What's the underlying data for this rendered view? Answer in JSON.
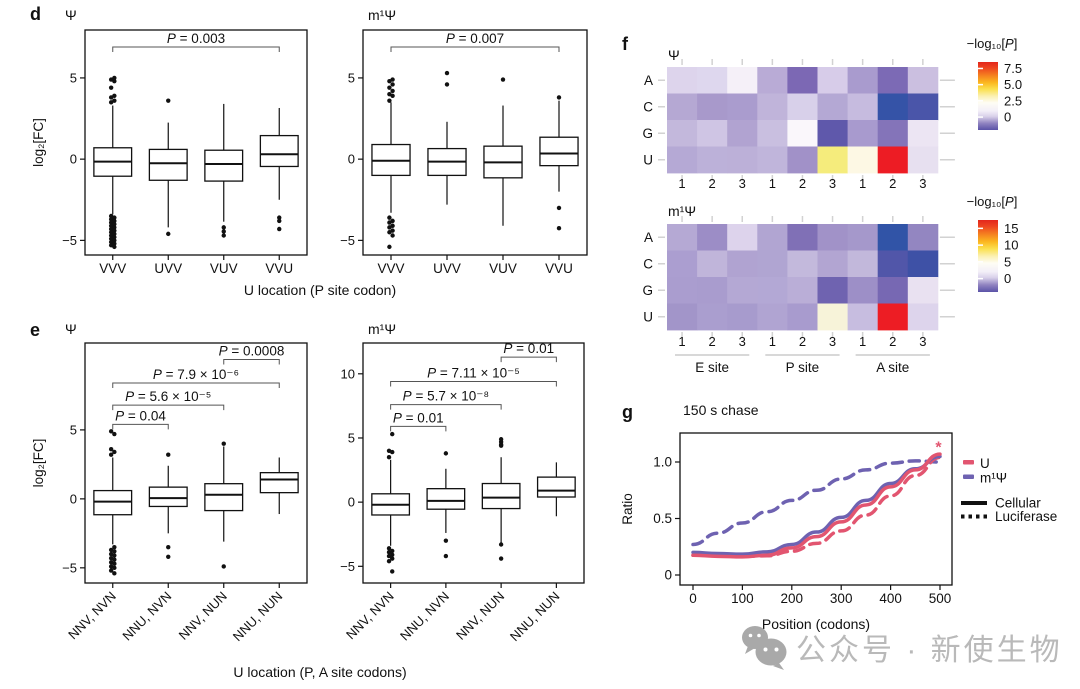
{
  "figure": {
    "panels": {
      "d": {
        "label": "d",
        "shared_xlabel": "U location (P site codon)"
      },
      "e": {
        "label": "e",
        "shared_xlabel": "U location (P, A site codons)"
      },
      "f": {
        "label": "f"
      },
      "g": {
        "label": "g"
      }
    },
    "watermark": {
      "text": "公众号 · 新使生物",
      "color": "#b9b9b9",
      "icon": "wechat-icon"
    }
  },
  "chart_data": [
    {
      "id": "d_psi",
      "panel": "d",
      "type": "box",
      "title": "Ψ",
      "ylabel": "log₂[FC]",
      "ylim": [
        -5.9,
        7.95
      ],
      "yticks": [
        -5,
        0,
        5
      ],
      "categories": [
        "VVV",
        "UVV",
        "VUV",
        "VVU"
      ],
      "boxes": [
        {
          "median": -0.15,
          "q1": -1.05,
          "q3": 0.7,
          "whisker_low": -3.4,
          "whisker_high": 3.3,
          "outliers": [
            3.5,
            3.6,
            3.8,
            3.9,
            4.4,
            4.8,
            4.9,
            5.0,
            -3.5,
            -3.6,
            -3.7,
            -3.8,
            -3.9,
            -4.0,
            -4.1,
            -4.2,
            -4.3,
            -4.4,
            -4.5,
            -4.6,
            -4.7,
            -4.8,
            -4.9,
            -5.0,
            -5.1,
            -5.2,
            -5.3,
            -5.4
          ]
        },
        {
          "median": -0.25,
          "q1": -1.3,
          "q3": 0.6,
          "whisker_low": -4.2,
          "whisker_high": 2.25,
          "outliers": [
            3.6,
            -4.6
          ]
        },
        {
          "median": -0.3,
          "q1": -1.35,
          "q3": 0.55,
          "whisker_low": -3.85,
          "whisker_high": 3.4,
          "outliers": [
            -4.2,
            -4.45,
            -4.7
          ]
        },
        {
          "median": 0.3,
          "q1": -0.45,
          "q3": 1.45,
          "whisker_low": -2.5,
          "whisker_high": 3.15,
          "outliers": [
            -3.6,
            -3.8,
            -4.3
          ]
        }
      ],
      "brackets": [
        {
          "from": 0,
          "to": 3,
          "y": 6.9,
          "label": "P = 0.003"
        }
      ]
    },
    {
      "id": "d_m1psi",
      "panel": "d",
      "type": "box",
      "title": "m¹Ψ",
      "ylabel": "",
      "ylim": [
        -5.9,
        7.95
      ],
      "yticks": [
        -5,
        0,
        5
      ],
      "categories": [
        "VVV",
        "UVV",
        "VUV",
        "VVU"
      ],
      "boxes": [
        {
          "median": -0.1,
          "q1": -1.0,
          "q3": 0.9,
          "whisker_low": -3.3,
          "whisker_high": 3.5,
          "outliers": [
            3.6,
            3.9,
            4.0,
            4.2,
            4.4,
            4.6,
            4.8,
            4.9,
            -3.6,
            -3.8,
            -3.9,
            -4.1,
            -4.2,
            -4.4,
            -4.5,
            -4.7,
            -5.4
          ]
        },
        {
          "median": -0.15,
          "q1": -1.0,
          "q3": 0.65,
          "whisker_low": -2.8,
          "whisker_high": 2.3,
          "outliers": [
            5.3,
            4.6
          ]
        },
        {
          "median": -0.2,
          "q1": -1.15,
          "q3": 0.8,
          "whisker_low": -4.1,
          "whisker_high": 3.3,
          "outliers": [
            4.9
          ]
        },
        {
          "median": 0.35,
          "q1": -0.4,
          "q3": 1.35,
          "whisker_low": -2.0,
          "whisker_high": 3.6,
          "outliers": [
            3.8,
            -3.0,
            -4.25
          ]
        }
      ],
      "brackets": [
        {
          "from": 0,
          "to": 3,
          "y": 6.9,
          "label": "P = 0.007"
        }
      ]
    },
    {
      "id": "e_psi",
      "panel": "e",
      "type": "box",
      "title": "Ψ",
      "ylabel": "log₂[FC]",
      "ylim": [
        -6.1,
        11.3
      ],
      "yticks": [
        -5,
        0,
        5
      ],
      "categories": [
        "NNV, NVN",
        "NNU, NVN",
        "NNV, NUN",
        "NNU, NUN"
      ],
      "boxes": [
        {
          "median": -0.2,
          "q1": -1.15,
          "q3": 0.6,
          "whisker_low": -3.3,
          "whisker_high": 3.0,
          "outliers": [
            3.2,
            3.4,
            3.6,
            4.7,
            4.9,
            -3.5,
            -3.7,
            -3.8,
            -4.0,
            -4.1,
            -4.3,
            -4.4,
            -4.6,
            -4.7,
            -4.9,
            -5.0,
            -5.2,
            -5.4
          ]
        },
        {
          "median": 0.05,
          "q1": -0.55,
          "q3": 0.85,
          "whisker_low": -2.5,
          "whisker_high": 2.4,
          "outliers": [
            3.2,
            -3.5,
            -4.2
          ]
        },
        {
          "median": 0.3,
          "q1": -0.85,
          "q3": 1.1,
          "whisker_low": -3.1,
          "whisker_high": 3.8,
          "outliers": [
            4.0,
            -4.9
          ]
        },
        {
          "median": 1.4,
          "q1": 0.45,
          "q3": 1.9,
          "whisker_low": -1.1,
          "whisker_high": 3.0,
          "outliers": []
        }
      ],
      "brackets": [
        {
          "from": 0,
          "to": 1,
          "y": 5.4,
          "label": "P = 0.04"
        },
        {
          "from": 0,
          "to": 2,
          "y": 6.8,
          "label": "P = 5.6 × 10⁻⁵"
        },
        {
          "from": 0,
          "to": 3,
          "y": 8.4,
          "label": "P = 7.9 × 10⁻⁶"
        },
        {
          "from": 2,
          "to": 3,
          "y": 10.1,
          "label": "P = 0.0008"
        }
      ]
    },
    {
      "id": "e_m1psi",
      "panel": "e",
      "type": "box",
      "title": "m¹Ψ",
      "ylabel": "",
      "ylim": [
        -6.3,
        12.4
      ],
      "yticks": [
        -5,
        0,
        5,
        10
      ],
      "categories": [
        "NNV, NVN",
        "NNU, NVN",
        "NNV, NUN",
        "NNU, NUN"
      ],
      "boxes": [
        {
          "median": -0.2,
          "q1": -1.0,
          "q3": 0.65,
          "whisker_low": -3.4,
          "whisker_high": 3.3,
          "outliers": [
            3.5,
            3.9,
            4.0,
            5.3,
            -3.6,
            -3.8,
            -3.9,
            -4.1,
            -4.2,
            -4.4,
            -4.6,
            -5.4
          ]
        },
        {
          "median": 0.1,
          "q1": -0.55,
          "q3": 1.05,
          "whisker_low": -2.4,
          "whisker_high": 2.6,
          "outliers": [
            3.8,
            -3.0,
            -4.2
          ]
        },
        {
          "median": 0.35,
          "q1": -0.5,
          "q3": 1.45,
          "whisker_low": -3.2,
          "whisker_high": 3.5,
          "outliers": [
            4.4,
            4.5,
            4.7,
            4.9,
            -3.3,
            -4.4
          ]
        },
        {
          "median": 0.9,
          "q1": 0.4,
          "q3": 1.95,
          "whisker_low": -1.1,
          "whisker_high": 3.1,
          "outliers": []
        }
      ],
      "brackets": [
        {
          "from": 0,
          "to": 1,
          "y": 5.9,
          "label": "P = 0.01"
        },
        {
          "from": 0,
          "to": 2,
          "y": 7.6,
          "label": "P = 5.7 × 10⁻⁸"
        },
        {
          "from": 0,
          "to": 3,
          "y": 9.4,
          "label": "P = 7.11 × 10⁻⁵"
        },
        {
          "from": 2,
          "to": 3,
          "y": 11.3,
          "label": "P = 0.01"
        }
      ]
    },
    {
      "id": "f_psi",
      "panel": "f",
      "type": "heatmap",
      "title": "Ψ",
      "rows": [
        "A",
        "C",
        "G",
        "U"
      ],
      "cols": [
        "1",
        "2",
        "3",
        "1",
        "2",
        "3",
        "1",
        "2",
        "3"
      ],
      "groups": null,
      "colors": [
        [
          "#ddd4ec",
          "#ded7ee",
          "#f5f0f8",
          "#b9abd6",
          "#7c68b4",
          "#d7cce9",
          "#a99bce",
          "#7c6ab5",
          "#cbbfe0"
        ],
        [
          "#b5a8d3",
          "#a899cb",
          "#aa9cce",
          "#c0b4da",
          "#d8d0ea",
          "#b4a8d4",
          "#c6bbdf",
          "#3553a7",
          "#4a55a9"
        ],
        [
          "#c3b8dc",
          "#cfc5e4",
          "#b1a3d1",
          "#c9bfe0",
          "#faf7fb",
          "#5f58ab",
          "#a89ace",
          "#8474b9",
          "#ece5f3"
        ],
        [
          "#b5a9d5",
          "#bcb1d9",
          "#bcb0d8",
          "#c0b5db",
          "#a191c8",
          "#f5ec7c",
          "#fdf8e4",
          "#ed1c24",
          "#e7e0f0"
        ]
      ],
      "colorbar": {
        "label": "−log₁₀[P]",
        "ticks": [
          {
            "label": "7.5",
            "pos": 0.095
          },
          {
            "label": "5.0",
            "pos": 0.333
          },
          {
            "label": "2.5",
            "pos": 0.571
          },
          {
            "label": "0",
            "pos": 0.81
          }
        ],
        "stops": [
          [
            0,
            "#e3261c"
          ],
          [
            0.09,
            "#ee4620"
          ],
          [
            0.2,
            "#f58220"
          ],
          [
            0.3,
            "#fbb61f"
          ],
          [
            0.4,
            "#fbe04e"
          ],
          [
            0.5,
            "#fbf0b0"
          ],
          [
            0.6,
            "#fefdf4"
          ],
          [
            0.72,
            "#f3eff8"
          ],
          [
            0.8,
            "#d9d1ea"
          ],
          [
            0.9,
            "#9184c1"
          ],
          [
            1,
            "#5a52a7"
          ]
        ]
      }
    },
    {
      "id": "f_m1psi",
      "panel": "f",
      "type": "heatmap",
      "title": "m¹Ψ",
      "rows": [
        "A",
        "C",
        "G",
        "U"
      ],
      "cols": [
        "1",
        "2",
        "3",
        "1",
        "2",
        "3",
        "1",
        "2",
        "3"
      ],
      "groups": [
        "E site",
        "P site",
        "A site"
      ],
      "colors": [
        [
          "#b5a9d4",
          "#9c8dc6",
          "#ddd3ec",
          "#b1a5d2",
          "#8070b6",
          "#a192c8",
          "#a598cb",
          "#3154a7",
          "#9386c1"
        ],
        [
          "#ab9ed0",
          "#c0b5da",
          "#b0a3d1",
          "#b0a5d2",
          "#c3b9dc",
          "#b2a5d2",
          "#c2b8db",
          "#5156a9",
          "#3e51a6"
        ],
        [
          "#aa9dcf",
          "#a99cce",
          "#b4a8d4",
          "#b3a8d5",
          "#baaed7",
          "#6f63b0",
          "#9d8fc7",
          "#7768b3",
          "#e9e1f1"
        ],
        [
          "#a295c9",
          "#aa9ecf",
          "#a79bcd",
          "#b0a4d2",
          "#a89bce",
          "#f7f3d9",
          "#c7bde0",
          "#ed1d24",
          "#ddd4ec"
        ]
      ],
      "colorbar": {
        "label": "−log₁₀[P]",
        "ticks": [
          {
            "label": "15",
            "pos": 0.116
          },
          {
            "label": "10",
            "pos": 0.349
          },
          {
            "label": "5",
            "pos": 0.581
          },
          {
            "label": "0",
            "pos": 0.814
          }
        ],
        "stops": [
          [
            0,
            "#e3261c"
          ],
          [
            0.09,
            "#ee4620"
          ],
          [
            0.2,
            "#f58220"
          ],
          [
            0.3,
            "#fbb61f"
          ],
          [
            0.4,
            "#fbe04e"
          ],
          [
            0.5,
            "#fbf0b0"
          ],
          [
            0.6,
            "#fefdf4"
          ],
          [
            0.72,
            "#f3eff8"
          ],
          [
            0.8,
            "#d9d1ea"
          ],
          [
            0.9,
            "#9184c1"
          ],
          [
            1,
            "#5a52a7"
          ]
        ]
      }
    },
    {
      "id": "g_chase",
      "panel": "g",
      "type": "line",
      "title": "150 s chase",
      "xlabel": "Position (codons)",
      "ylabel": "Ratio",
      "xticks": [
        [
          "0",
          0
        ],
        [
          "100",
          100
        ],
        [
          "200",
          200
        ],
        [
          "300",
          300
        ],
        [
          "400",
          400
        ],
        [
          "500",
          500
        ]
      ],
      "yticks": [
        [
          "0",
          0
        ],
        [
          "0.5",
          0.5
        ],
        [
          "1.0",
          1
        ]
      ],
      "x": [
        0,
        50,
        100,
        150,
        200,
        250,
        300,
        350,
        400,
        450,
        500
      ],
      "series": [
        {
          "name": "m¹Ψ Luciferase",
          "color": "#6e62b1",
          "dash": "10 7",
          "values": [
            0.27,
            0.37,
            0.46,
            0.56,
            0.66,
            0.75,
            0.85,
            0.93,
            0.99,
            1.01,
            1.0
          ]
        },
        {
          "name": "U Luciferase",
          "color": "#e25570",
          "dash": "10 7",
          "values": [
            0.175,
            0.17,
            0.165,
            0.17,
            0.21,
            0.28,
            0.39,
            0.53,
            0.7,
            0.88,
            1.04
          ]
        },
        {
          "name": "m¹Ψ Cellular",
          "color": "#6e62b1",
          "dash": null,
          "values": [
            0.2,
            0.19,
            0.185,
            0.205,
            0.27,
            0.38,
            0.51,
            0.66,
            0.81,
            0.94,
            1.05
          ]
        },
        {
          "name": "U Cellular",
          "color": "#e25570",
          "dash": null,
          "values": [
            0.175,
            0.165,
            0.16,
            0.175,
            0.24,
            0.34,
            0.47,
            0.62,
            0.78,
            0.93,
            1.07
          ]
        }
      ],
      "annotation": {
        "symbol": "*",
        "x": 497,
        "y": 1.12,
        "color": "#e25570"
      },
      "legend": {
        "colors": [
          {
            "label": "U",
            "color": "#e25570"
          },
          {
            "label": "m¹Ψ",
            "color": "#6e62b1"
          }
        ],
        "styles": [
          {
            "label": "Cellular",
            "dash": null
          },
          {
            "label": "Luciferase",
            "dash": "3.5 4"
          }
        ]
      }
    }
  ]
}
